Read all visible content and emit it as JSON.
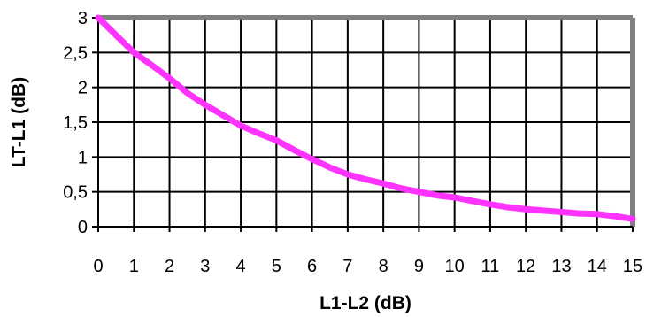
{
  "chart_data": {
    "type": "line",
    "title": "",
    "xlabel": "L1-L2 (dB)",
    "ylabel": "LT-L1 (dB)",
    "xlim": [
      0,
      15
    ],
    "ylim": [
      0,
      3
    ],
    "x_ticks": [
      "0",
      "1",
      "2",
      "3",
      "4",
      "5",
      "6",
      "7",
      "8",
      "9",
      "10",
      "11",
      "12",
      "13",
      "14",
      "15"
    ],
    "y_ticks": [
      "0",
      "0,5",
      "1",
      "1,5",
      "2",
      "2,5",
      "3"
    ],
    "grid": true,
    "legend": "none",
    "colors": {
      "line": "#ff33ff",
      "grid": "#000000",
      "frame": "#808080"
    },
    "series": [
      {
        "x": [
          0,
          0.5,
          1,
          1.5,
          2,
          2.5,
          3,
          3.5,
          4,
          4.5,
          5,
          5.5,
          6,
          6.5,
          7,
          7.5,
          8,
          8.5,
          9,
          9.5,
          10,
          10.5,
          11,
          11.5,
          12,
          12.5,
          13,
          13.5,
          14,
          14.5,
          15
        ],
        "y": [
          3.0,
          2.75,
          2.5,
          2.32,
          2.13,
          1.92,
          1.75,
          1.6,
          1.45,
          1.34,
          1.24,
          1.1,
          0.97,
          0.85,
          0.75,
          0.68,
          0.62,
          0.55,
          0.5,
          0.45,
          0.42,
          0.37,
          0.32,
          0.28,
          0.25,
          0.23,
          0.21,
          0.19,
          0.18,
          0.15,
          0.11
        ]
      }
    ]
  }
}
